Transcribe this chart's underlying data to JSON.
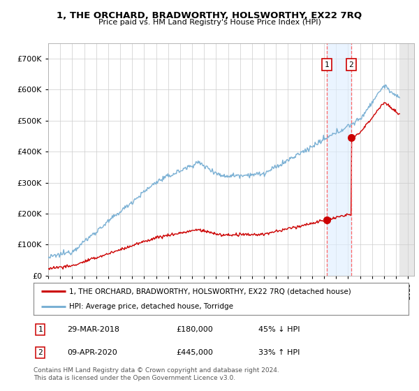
{
  "title": "1, THE ORCHARD, BRADWORTHY, HOLSWORTHY, EX22 7RQ",
  "subtitle": "Price paid vs. HM Land Registry's House Price Index (HPI)",
  "legend_line1": "1, THE ORCHARD, BRADWORTHY, HOLSWORTHY, EX22 7RQ (detached house)",
  "legend_line2": "HPI: Average price, detached house, Torridge",
  "footer": "Contains HM Land Registry data © Crown copyright and database right 2024.\nThis data is licensed under the Open Government Licence v3.0.",
  "xmin": 1995,
  "xmax": 2025.5,
  "ymin": 0,
  "ymax": 700000,
  "yticks": [
    0,
    100000,
    200000,
    300000,
    400000,
    500000,
    600000,
    700000
  ],
  "hatch_start": 2024.3,
  "red_color": "#cc0000",
  "blue_color": "#7ab0d4",
  "marker1_x": 2018.23,
  "marker1_y": 180000,
  "marker2_x": 2020.27,
  "marker2_y": 445000,
  "shade_color": "#ddeeff"
}
